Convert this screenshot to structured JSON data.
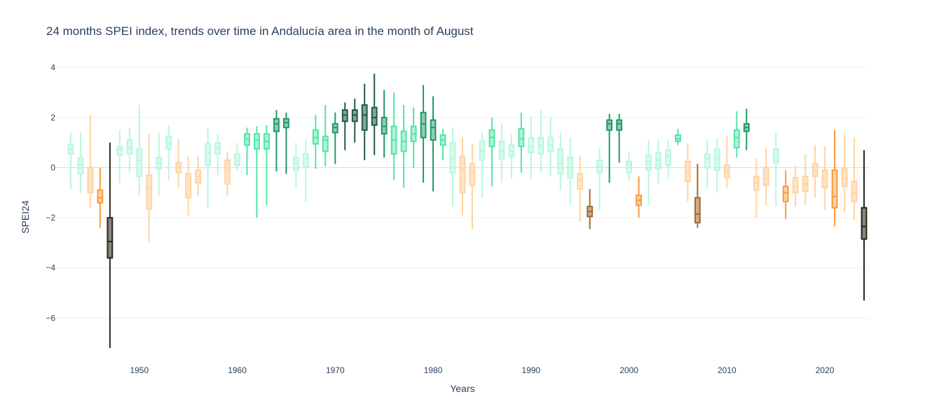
{
  "chart_data": {
    "type": "box",
    "title": "24 months SPEI index, trends over time in Andalucía area in the month of August",
    "xlabel": "Years",
    "ylabel": "SPEI24",
    "xlim": [
      1941.5,
      2024.5
    ],
    "ylim": [
      -7.5,
      4.4
    ],
    "x_ticks": [
      1950,
      1960,
      1970,
      1980,
      1990,
      2000,
      2010,
      2020
    ],
    "y_ticks": [
      4,
      2,
      0,
      -2,
      -4,
      -6
    ],
    "grid": true,
    "legend": "none",
    "colors": {
      "wet_1": "#b8f7dd",
      "wet_2": "#4fe6a6",
      "wet_3": "#1e9a68",
      "wet_4": "#1f5c44",
      "dry_1": "#ffd3a1",
      "dry_2": "#f89a3a",
      "dry_3": "#a26a2e",
      "dry_4": "#2b2316"
    },
    "boxes": [
      {
        "year": 1943,
        "low": -0.85,
        "q1": 0.55,
        "median": 0.75,
        "q3": 0.92,
        "high": 1.4,
        "cls": "wet_1"
      },
      {
        "year": 1944,
        "low": -1.0,
        "q1": -0.25,
        "median": 0.1,
        "q3": 0.4,
        "high": 1.4,
        "cls": "wet_1"
      },
      {
        "year": 1945,
        "low": -1.6,
        "q1": -1.0,
        "median": -0.65,
        "q3": 0.0,
        "high": 2.1,
        "cls": "dry_1"
      },
      {
        "year": 1946,
        "low": -2.4,
        "q1": -1.4,
        "median": -1.2,
        "q3": -0.9,
        "high": 0.0,
        "cls": "dry_2"
      },
      {
        "year": 1947,
        "low": -7.2,
        "q1": -3.6,
        "median": -2.95,
        "q3": -2.0,
        "high": 1.0,
        "cls": "dry_4"
      },
      {
        "year": 1948,
        "low": -0.6,
        "q1": 0.5,
        "median": 0.7,
        "q3": 0.85,
        "high": 1.5,
        "cls": "wet_1"
      },
      {
        "year": 1949,
        "low": -0.2,
        "q1": 0.55,
        "median": 0.8,
        "q3": 1.1,
        "high": 1.6,
        "cls": "wet_1"
      },
      {
        "year": 1950,
        "low": -1.1,
        "q1": -0.35,
        "median": 0.3,
        "q3": 0.75,
        "high": 2.5,
        "cls": "wet_1"
      },
      {
        "year": 1951,
        "low": -3.0,
        "q1": -1.65,
        "median": -0.8,
        "q3": -0.3,
        "high": 1.35,
        "cls": "dry_1"
      },
      {
        "year": 1952,
        "low": -1.1,
        "q1": -0.05,
        "median": 0.2,
        "q3": 0.4,
        "high": 1.4,
        "cls": "wet_1"
      },
      {
        "year": 1953,
        "low": -0.5,
        "q1": 0.75,
        "median": 0.95,
        "q3": 1.25,
        "high": 1.7,
        "cls": "wet_1"
      },
      {
        "year": 1954,
        "low": -0.8,
        "q1": -0.2,
        "median": 0.0,
        "q3": 0.2,
        "high": 1.15,
        "cls": "dry_1"
      },
      {
        "year": 1955,
        "low": -1.9,
        "q1": -1.2,
        "median": -0.65,
        "q3": -0.25,
        "high": 0.45,
        "cls": "dry_1"
      },
      {
        "year": 1956,
        "low": -1.1,
        "q1": -0.6,
        "median": -0.35,
        "q3": -0.1,
        "high": 0.5,
        "cls": "dry_1"
      },
      {
        "year": 1957,
        "low": -1.6,
        "q1": 0.1,
        "median": 0.6,
        "q3": 0.95,
        "high": 1.6,
        "cls": "wet_1"
      },
      {
        "year": 1958,
        "low": -0.3,
        "q1": 0.55,
        "median": 0.8,
        "q3": 0.98,
        "high": 1.35,
        "cls": "wet_1"
      },
      {
        "year": 1959,
        "low": -1.1,
        "q1": -0.65,
        "median": -0.1,
        "q3": 0.3,
        "high": 0.6,
        "cls": "dry_1"
      },
      {
        "year": 1960,
        "low": -0.1,
        "q1": 0.1,
        "median": 0.3,
        "q3": 0.55,
        "high": 1.0,
        "cls": "wet_1"
      },
      {
        "year": 1961,
        "low": -0.3,
        "q1": 0.9,
        "median": 1.15,
        "q3": 1.35,
        "high": 1.6,
        "cls": "wet_2"
      },
      {
        "year": 1962,
        "low": -2.0,
        "q1": 0.75,
        "median": 1.1,
        "q3": 1.35,
        "high": 1.65,
        "cls": "wet_2"
      },
      {
        "year": 1963,
        "low": -1.5,
        "q1": 0.75,
        "median": 1.05,
        "q3": 1.35,
        "high": 1.7,
        "cls": "wet_2"
      },
      {
        "year": 1964,
        "low": -0.15,
        "q1": 1.45,
        "median": 1.75,
        "q3": 1.95,
        "high": 2.3,
        "cls": "wet_3"
      },
      {
        "year": 1965,
        "low": -0.25,
        "q1": 1.6,
        "median": 1.8,
        "q3": 1.95,
        "high": 2.2,
        "cls": "wet_3"
      },
      {
        "year": 1966,
        "low": -0.8,
        "q1": -0.1,
        "median": 0.2,
        "q3": 0.4,
        "high": 1.0,
        "cls": "wet_1"
      },
      {
        "year": 1967,
        "low": -1.35,
        "q1": 0.05,
        "median": 0.35,
        "q3": 0.55,
        "high": 1.1,
        "cls": "wet_1"
      },
      {
        "year": 1968,
        "low": -0.05,
        "q1": 0.95,
        "median": 1.2,
        "q3": 1.5,
        "high": 2.1,
        "cls": "wet_2"
      },
      {
        "year": 1969,
        "low": 0.05,
        "q1": 0.65,
        "median": 1.1,
        "q3": 1.25,
        "high": 2.5,
        "cls": "wet_2"
      },
      {
        "year": 1970,
        "low": 0.15,
        "q1": 1.4,
        "median": 1.6,
        "q3": 1.75,
        "high": 2.2,
        "cls": "wet_3"
      },
      {
        "year": 1971,
        "low": 0.7,
        "q1": 1.85,
        "median": 2.1,
        "q3": 2.3,
        "high": 2.6,
        "cls": "wet_4"
      },
      {
        "year": 1972,
        "low": 1.0,
        "q1": 1.85,
        "median": 2.1,
        "q3": 2.3,
        "high": 2.75,
        "cls": "wet_4"
      },
      {
        "year": 1973,
        "low": 0.3,
        "q1": 1.5,
        "median": 2.1,
        "q3": 2.5,
        "high": 3.35,
        "cls": "wet_4"
      },
      {
        "year": 1974,
        "low": 0.5,
        "q1": 1.7,
        "median": 2.0,
        "q3": 2.4,
        "high": 3.75,
        "cls": "wet_4"
      },
      {
        "year": 1975,
        "low": 0.4,
        "q1": 1.35,
        "median": 1.65,
        "q3": 2.0,
        "high": 3.1,
        "cls": "wet_3"
      },
      {
        "year": 1976,
        "low": -0.5,
        "q1": 0.55,
        "median": 1.1,
        "q3": 1.65,
        "high": 3.0,
        "cls": "wet_2"
      },
      {
        "year": 1977,
        "low": -0.8,
        "q1": 0.65,
        "median": 1.05,
        "q3": 1.45,
        "high": 2.5,
        "cls": "wet_2"
      },
      {
        "year": 1978,
        "low": 0.0,
        "q1": 1.05,
        "median": 1.35,
        "q3": 1.65,
        "high": 2.4,
        "cls": "wet_2"
      },
      {
        "year": 1979,
        "low": -0.6,
        "q1": 1.2,
        "median": 1.75,
        "q3": 2.2,
        "high": 3.3,
        "cls": "wet_3"
      },
      {
        "year": 1980,
        "low": -0.95,
        "q1": 1.1,
        "median": 1.6,
        "q3": 1.9,
        "high": 2.85,
        "cls": "wet_3"
      },
      {
        "year": 1981,
        "low": 0.3,
        "q1": 0.9,
        "median": 1.1,
        "q3": 1.3,
        "high": 1.55,
        "cls": "wet_2"
      },
      {
        "year": 1982,
        "low": -1.55,
        "q1": -0.2,
        "median": 0.35,
        "q3": 1.0,
        "high": 1.6,
        "cls": "wet_1"
      },
      {
        "year": 1983,
        "low": -1.9,
        "q1": -1.0,
        "median": -0.1,
        "q3": 0.45,
        "high": 1.2,
        "cls": "dry_1"
      },
      {
        "year": 1984,
        "low": -2.45,
        "q1": -0.7,
        "median": -0.2,
        "q3": 0.15,
        "high": 0.95,
        "cls": "dry_1"
      },
      {
        "year": 1985,
        "low": -1.2,
        "q1": 0.3,
        "median": 0.65,
        "q3": 1.05,
        "high": 1.4,
        "cls": "wet_1"
      },
      {
        "year": 1986,
        "low": -0.75,
        "q1": 0.85,
        "median": 1.2,
        "q3": 1.5,
        "high": 2.0,
        "cls": "wet_2"
      },
      {
        "year": 1987,
        "low": -0.6,
        "q1": 0.35,
        "median": 0.65,
        "q3": 1.05,
        "high": 1.75,
        "cls": "wet_1"
      },
      {
        "year": 1988,
        "low": -0.45,
        "q1": 0.45,
        "median": 0.65,
        "q3": 0.9,
        "high": 1.35,
        "cls": "wet_1"
      },
      {
        "year": 1989,
        "low": -0.2,
        "q1": 0.85,
        "median": 1.15,
        "q3": 1.55,
        "high": 2.2,
        "cls": "wet_2"
      },
      {
        "year": 1990,
        "low": -0.45,
        "q1": 0.6,
        "median": 0.85,
        "q3": 1.2,
        "high": 2.0,
        "cls": "wet_1"
      },
      {
        "year": 1991,
        "low": -0.2,
        "q1": 0.55,
        "median": 0.9,
        "q3": 1.2,
        "high": 2.3,
        "cls": "wet_1"
      },
      {
        "year": 1992,
        "low": -0.35,
        "q1": 0.65,
        "median": 0.9,
        "q3": 1.2,
        "high": 2.0,
        "cls": "wet_1"
      },
      {
        "year": 1993,
        "low": -0.9,
        "q1": -0.25,
        "median": 0.2,
        "q3": 0.75,
        "high": 1.4,
        "cls": "wet_1"
      },
      {
        "year": 1994,
        "low": -1.5,
        "q1": -0.4,
        "median": 0.0,
        "q3": 0.4,
        "high": 1.2,
        "cls": "wet_1"
      },
      {
        "year": 1995,
        "low": -2.15,
        "q1": -0.85,
        "median": -0.5,
        "q3": -0.25,
        "high": 0.45,
        "cls": "dry_1"
      },
      {
        "year": 1996,
        "low": -2.45,
        "q1": -1.95,
        "median": -1.75,
        "q3": -1.55,
        "high": -0.85,
        "cls": "dry_3"
      },
      {
        "year": 1997,
        "low": -1.7,
        "q1": -0.2,
        "median": 0.05,
        "q3": 0.3,
        "high": 0.8,
        "cls": "wet_1"
      },
      {
        "year": 1998,
        "low": -0.6,
        "q1": 1.5,
        "median": 1.75,
        "q3": 1.9,
        "high": 2.15,
        "cls": "wet_3"
      },
      {
        "year": 1999,
        "low": 0.2,
        "q1": 1.5,
        "median": 1.75,
        "q3": 1.9,
        "high": 2.15,
        "cls": "wet_3"
      },
      {
        "year": 2000,
        "low": -0.55,
        "q1": -0.2,
        "median": 0.1,
        "q3": 0.25,
        "high": 0.65,
        "cls": "wet_1"
      },
      {
        "year": 2001,
        "low": -2.0,
        "q1": -1.5,
        "median": -1.3,
        "q3": -1.1,
        "high": -0.35,
        "cls": "dry_2"
      },
      {
        "year": 2002,
        "low": -1.5,
        "q1": -0.1,
        "median": 0.25,
        "q3": 0.5,
        "high": 1.1,
        "cls": "wet_1"
      },
      {
        "year": 2003,
        "low": -0.65,
        "q1": -0.05,
        "median": 0.3,
        "q3": 0.6,
        "high": 1.1,
        "cls": "wet_1"
      },
      {
        "year": 2004,
        "low": -0.45,
        "q1": 0.1,
        "median": 0.45,
        "q3": 0.7,
        "high": 1.1,
        "cls": "wet_1"
      },
      {
        "year": 2005,
        "low": 0.9,
        "q1": 1.05,
        "median": 1.15,
        "q3": 1.3,
        "high": 1.55,
        "cls": "wet_2"
      },
      {
        "year": 2006,
        "low": -1.35,
        "q1": -0.55,
        "median": -0.2,
        "q3": 0.25,
        "high": 0.95,
        "cls": "dry_1"
      },
      {
        "year": 2007,
        "low": -2.4,
        "q1": -2.2,
        "median": -1.85,
        "q3": -1.2,
        "high": 0.15,
        "cls": "dry_3"
      },
      {
        "year": 2008,
        "low": -0.85,
        "q1": 0.0,
        "median": 0.35,
        "q3": 0.55,
        "high": 1.1,
        "cls": "wet_1"
      },
      {
        "year": 2009,
        "low": -1.0,
        "q1": -0.1,
        "median": 0.35,
        "q3": 0.75,
        "high": 1.2,
        "cls": "wet_1"
      },
      {
        "year": 2010,
        "low": -0.8,
        "q1": -0.4,
        "median": -0.15,
        "q3": 0.1,
        "high": 1.25,
        "cls": "dry_1"
      },
      {
        "year": 2011,
        "low": 0.4,
        "q1": 0.8,
        "median": 1.2,
        "q3": 1.5,
        "high": 2.25,
        "cls": "wet_2"
      },
      {
        "year": 2012,
        "low": 0.7,
        "q1": 1.45,
        "median": 1.6,
        "q3": 1.75,
        "high": 2.35,
        "cls": "wet_3"
      },
      {
        "year": 2013,
        "low": -2.0,
        "q1": -0.9,
        "median": -0.6,
        "q3": -0.35,
        "high": 0.35,
        "cls": "dry_1"
      },
      {
        "year": 2014,
        "low": -1.5,
        "q1": -0.7,
        "median": -0.45,
        "q3": 0.0,
        "high": 0.8,
        "cls": "dry_1"
      },
      {
        "year": 2015,
        "low": -1.55,
        "q1": 0.2,
        "median": 0.45,
        "q3": 0.75,
        "high": 1.4,
        "cls": "wet_1"
      },
      {
        "year": 2016,
        "low": -2.05,
        "q1": -1.35,
        "median": -1.0,
        "q3": -0.75,
        "high": -0.1,
        "cls": "dry_2"
      },
      {
        "year": 2017,
        "low": -1.55,
        "q1": -1.0,
        "median": -0.75,
        "q3": -0.4,
        "high": 0.1,
        "cls": "dry_1"
      },
      {
        "year": 2018,
        "low": -1.5,
        "q1": -0.95,
        "median": -0.65,
        "q3": -0.35,
        "high": 0.55,
        "cls": "dry_1"
      },
      {
        "year": 2019,
        "low": -1.2,
        "q1": -0.35,
        "median": -0.1,
        "q3": 0.15,
        "high": 0.9,
        "cls": "dry_1"
      },
      {
        "year": 2020,
        "low": -1.7,
        "q1": -0.8,
        "median": -0.45,
        "q3": -0.1,
        "high": 0.85,
        "cls": "dry_1"
      },
      {
        "year": 2021,
        "low": -2.35,
        "q1": -1.6,
        "median": -1.15,
        "q3": -0.1,
        "high": 1.5,
        "cls": "dry_2"
      },
      {
        "year": 2022,
        "low": -1.8,
        "q1": -0.75,
        "median": -0.45,
        "q3": -0.05,
        "high": 1.3,
        "cls": "dry_1"
      },
      {
        "year": 2023,
        "low": -2.1,
        "q1": -1.35,
        "median": -1.0,
        "q3": -0.55,
        "high": 1.2,
        "cls": "dry_1"
      },
      {
        "year": 2024,
        "low": -5.3,
        "q1": -2.85,
        "median": -2.35,
        "q3": -1.6,
        "high": 0.7,
        "cls": "dry_4"
      }
    ]
  }
}
